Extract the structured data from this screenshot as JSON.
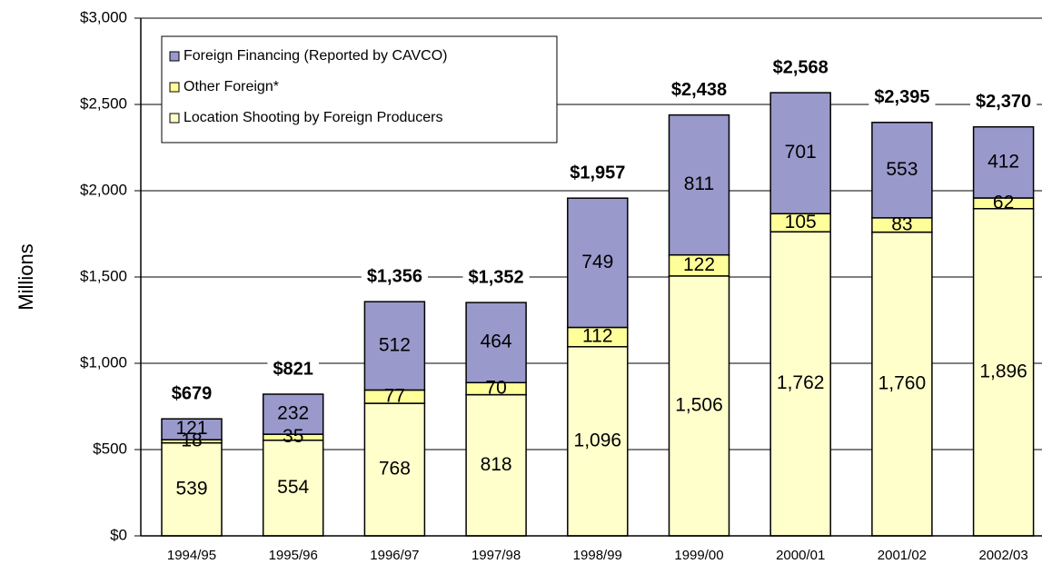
{
  "chart_data": {
    "type": "stacked_bar",
    "y_label": "Millions",
    "categories": [
      "1994/95",
      "1995/96",
      "1996/97",
      "1997/98",
      "1998/99",
      "1999/00",
      "2000/01",
      "2001/02",
      "2002/03"
    ],
    "series": [
      {
        "name": "Location Shooting by Foreign Producers",
        "color": "#ffffcc",
        "values": [
          539,
          554,
          768,
          818,
          1096,
          1506,
          1762,
          1760,
          1896
        ],
        "value_labels": [
          "539",
          "554",
          "768",
          "818",
          "1,096",
          "1,506",
          "1,762",
          "1,760",
          "1,896"
        ]
      },
      {
        "name": "Other Foreign*",
        "color": "#ffff99",
        "values": [
          18,
          35,
          77,
          70,
          112,
          122,
          105,
          83,
          62
        ]
      },
      {
        "name": "Foreign Financing (Reported by CAVCO)",
        "color": "#9999cc",
        "values": [
          121,
          232,
          512,
          464,
          749,
          811,
          701,
          553,
          412
        ]
      }
    ],
    "totals": {
      "values": [
        679,
        821,
        1356,
        1352,
        1957,
        2438,
        2568,
        2395,
        2370
      ],
      "value_labels": [
        "$679",
        "$821",
        "$1,356",
        "$1,352",
        "$1,957",
        "$2,438",
        "$2,568",
        "$2,395",
        "$2,370"
      ]
    },
    "ylim": [
      0,
      3000
    ],
    "yticks": [
      {
        "value": 0,
        "label": "$0"
      },
      {
        "value": 500,
        "label": "$500"
      },
      {
        "value": 1000,
        "label": "$1,000"
      },
      {
        "value": 1500,
        "label": "$1,500"
      },
      {
        "value": 2000,
        "label": "$2,000"
      },
      {
        "value": 2500,
        "label": "$2,500"
      },
      {
        "value": 3000,
        "label": "$3,000"
      }
    ],
    "grid": true,
    "legend": "top-left"
  }
}
